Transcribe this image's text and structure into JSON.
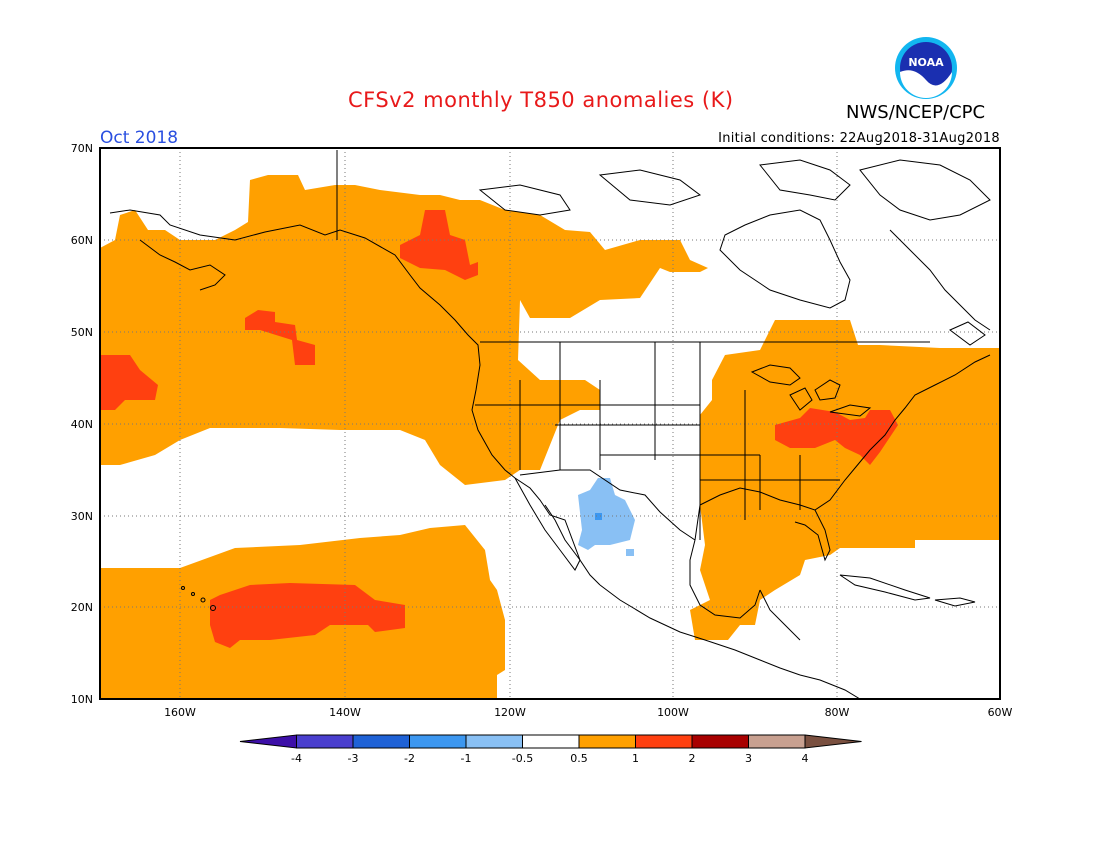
{
  "header": {
    "title": "CFSv2 monthly T850 anomalies (K)",
    "org": "NWS/NCEP/CPC",
    "month": "Oct 2018",
    "initial_conditions": "Initial conditions: 22Aug2018-31Aug2018",
    "logo_text": "NOAA"
  },
  "axes": {
    "lat_labels": [
      "70N",
      "60N",
      "50N",
      "40N",
      "30N",
      "20N",
      "10N"
    ],
    "lon_labels": [
      "160W",
      "140W",
      "120W",
      "100W",
      "80W",
      "60W"
    ]
  },
  "colorbar": {
    "labels": [
      "-4",
      "-3",
      "-2",
      "-1",
      "-0.5",
      "0.5",
      "1",
      "2",
      "3",
      "4"
    ],
    "colors": [
      "#3d0fa8",
      "#4a3fce",
      "#1f62d6",
      "#3c97f0",
      "#89c0f4",
      "#ffffff",
      "#ffa000",
      "#ff4010",
      "#a80000",
      "#c8a090",
      "#7a5040"
    ]
  },
  "colors": {
    "positive_weak": "#ffa000",
    "positive_strong": "#ff4010",
    "negative_weak": "#89c0f4",
    "negative_moderate": "#3c97f0",
    "title": "#e8191a",
    "month": "#2a4fe0"
  }
}
